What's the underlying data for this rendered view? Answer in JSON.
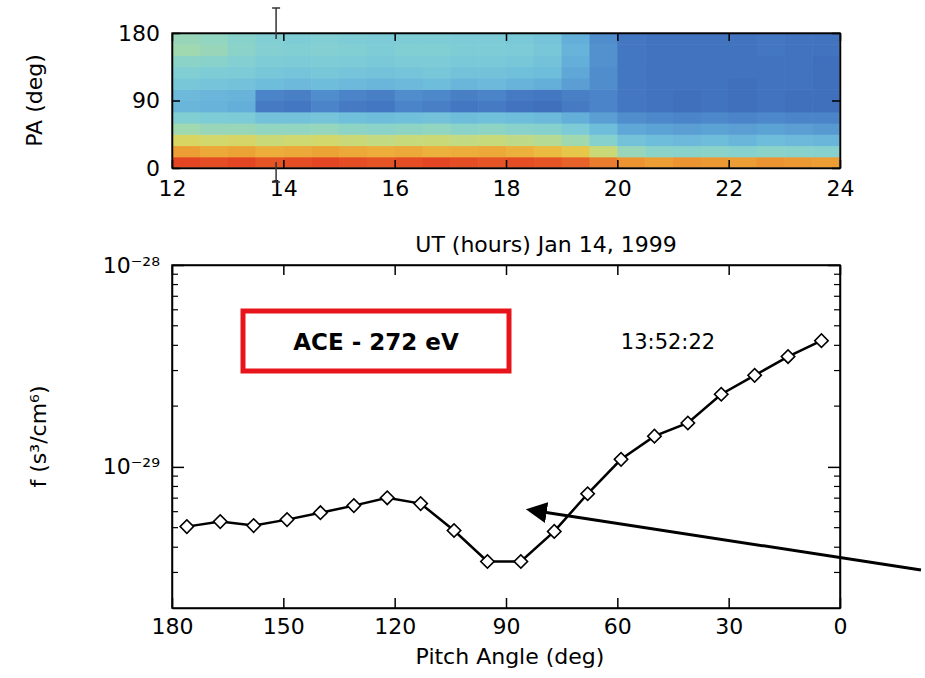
{
  "chart_data": [
    {
      "type": "heatmap",
      "xlabel": "UT (hours) Jan 14, 1999",
      "ylabel": "PA (deg)",
      "xlim": [
        12,
        24
      ],
      "ylim": [
        0,
        180
      ],
      "xticks": [
        12,
        14,
        16,
        18,
        20,
        22,
        24
      ],
      "yticks": [
        0,
        90,
        180
      ],
      "x_edges": [
        12,
        12.5,
        13,
        13.5,
        14,
        14.5,
        15,
        15.5,
        16,
        16.5,
        17,
        17.5,
        18,
        18.5,
        19,
        19.5,
        20,
        20.5,
        21,
        21.5,
        22,
        22.5,
        23,
        23.5,
        24
      ],
      "y_edges": [
        0,
        15,
        30,
        45,
        60,
        75,
        90,
        105,
        120,
        135,
        150,
        165,
        180
      ],
      "zlim": [
        0,
        100
      ],
      "z": [
        [
          96,
          95,
          96,
          94,
          95,
          96,
          95,
          94,
          95,
          96,
          95,
          94,
          95,
          94,
          92,
          88,
          84,
          82,
          84,
          83,
          82,
          84,
          83,
          82
        ],
        [
          82,
          80,
          81,
          79,
          80,
          81,
          80,
          79,
          80,
          78,
          79,
          80,
          78,
          76,
          72,
          62,
          50,
          46,
          45,
          46,
          44,
          46,
          45,
          44
        ],
        [
          66,
          64,
          65,
          62,
          63,
          64,
          62,
          60,
          61,
          62,
          60,
          61,
          59,
          57,
          52,
          44,
          36,
          34,
          33,
          34,
          32,
          34,
          33,
          32
        ],
        [
          52,
          50,
          50,
          48,
          48,
          49,
          47,
          46,
          47,
          48,
          46,
          47,
          45,
          44,
          40,
          34,
          28,
          27,
          26,
          27,
          26,
          27,
          26,
          25
        ],
        [
          42,
          41,
          40,
          36,
          36,
          37,
          35,
          34,
          35,
          36,
          34,
          35,
          34,
          33,
          30,
          26,
          22,
          21,
          20,
          21,
          20,
          21,
          20,
          20
        ],
        [
          32,
          31,
          30,
          18,
          17,
          20,
          18,
          17,
          20,
          19,
          17,
          18,
          16,
          15,
          18,
          20,
          17,
          16,
          15,
          16,
          15,
          16,
          15,
          15
        ],
        [
          33,
          32,
          31,
          20,
          19,
          22,
          20,
          19,
          22,
          21,
          19,
          20,
          18,
          17,
          19,
          20,
          17,
          16,
          15,
          16,
          15,
          16,
          15,
          15
        ],
        [
          38,
          37,
          36,
          34,
          33,
          34,
          33,
          32,
          33,
          34,
          32,
          33,
          31,
          30,
          26,
          22,
          17,
          16,
          16,
          16,
          15,
          16,
          16,
          15
        ],
        [
          42,
          41,
          40,
          38,
          37,
          38,
          37,
          36,
          37,
          38,
          36,
          36,
          35,
          34,
          28,
          22,
          17,
          16,
          16,
          16,
          16,
          16,
          16,
          15
        ],
        [
          46,
          45,
          43,
          41,
          40,
          41,
          40,
          39,
          40,
          40,
          39,
          39,
          38,
          36,
          30,
          23,
          17,
          16,
          16,
          16,
          16,
          16,
          16,
          15
        ],
        [
          52,
          50,
          46,
          43,
          42,
          43,
          42,
          41,
          42,
          42,
          41,
          41,
          40,
          38,
          31,
          23,
          17,
          16,
          16,
          16,
          16,
          17,
          16,
          16
        ],
        [
          50,
          48,
          45,
          42,
          41,
          42,
          41,
          40,
          41,
          41,
          40,
          40,
          39,
          37,
          30,
          22,
          17,
          16,
          16,
          16,
          16,
          17,
          16,
          16
        ]
      ],
      "markers_x": [
        13.87
      ]
    },
    {
      "type": "line",
      "xlabel": "Pitch Angle (deg)",
      "ylabel": "f (s³/cm⁶)",
      "log": "y",
      "xlim": [
        180,
        0
      ],
      "ylim": [
        2e-30,
        1e-28
      ],
      "xticks": [
        180,
        150,
        120,
        90,
        60,
        30,
        0
      ],
      "yticks": [
        {
          "value": 1e-28,
          "label": "10⁻²⁸"
        },
        {
          "value": 1e-29,
          "label": "10⁻²⁹"
        }
      ],
      "yminor": [
        3e-30,
        4e-30,
        5e-30,
        6e-30,
        7e-30,
        8e-30,
        9e-30,
        2e-29,
        3e-29,
        4e-29,
        5e-29,
        6e-29,
        7e-29,
        8e-29,
        9e-29
      ],
      "x": [
        176,
        167,
        158,
        149,
        140,
        131,
        122,
        113,
        104,
        95,
        86,
        77,
        68,
        59,
        50,
        41,
        32,
        23,
        14,
        5
      ],
      "series": [
        {
          "color": "#000000",
          "marker": "diamond",
          "values": [
            5.06e-30,
            5.36e-30,
            5.12e-30,
            5.48e-30,
            5.93e-30,
            6.43e-30,
            7.03e-30,
            6.58e-30,
            4.84e-30,
            3.4e-30,
            3.4e-30,
            4.79e-30,
            7.36e-30,
            1.09e-29,
            1.42e-29,
            1.65e-29,
            2.29e-29,
            2.84e-29,
            3.52e-29,
            4.22e-29
          ]
        }
      ],
      "annotations": [
        "ACE - 272 eV",
        "13:52:22"
      ]
    }
  ]
}
